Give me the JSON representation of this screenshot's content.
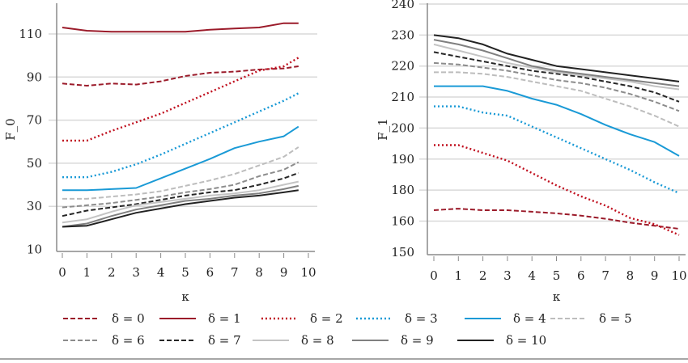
{
  "chart_data": [
    {
      "type": "line",
      "title": "",
      "xlabel": "κ",
      "ylabel": "F_0",
      "xlim": [
        0,
        10
      ],
      "ylim": [
        10,
        122
      ],
      "x_ticks": [
        "0",
        "1",
        "2",
        "3",
        "4",
        "5",
        "6",
        "7",
        "8",
        "9",
        "10"
      ],
      "y_ticks": [
        "10",
        "30",
        "50",
        "70",
        "90",
        "110"
      ],
      "y_tick_values": [
        10,
        30,
        50,
        70,
        90,
        110
      ],
      "grid": "horizontal",
      "x": [
        0,
        1,
        2,
        3,
        4,
        5,
        6,
        7,
        8,
        9,
        9.6
      ],
      "series": [
        {
          "name": "δ = 0",
          "style": "dashed",
          "color": "#9b1b2a",
          "values": [
            87,
            86,
            87,
            86.5,
            88,
            90.5,
            92,
            92.5,
            93.5,
            94,
            95
          ]
        },
        {
          "name": "δ = 1",
          "style": "solid",
          "color": "#9b1b2a",
          "values": [
            113,
            111.5,
            111,
            111,
            111,
            111,
            112,
            112.5,
            113,
            115,
            115
          ]
        },
        {
          "name": "δ = 2",
          "style": "dotted",
          "color": "#c0101f",
          "values": [
            60.5,
            60.5,
            65,
            69,
            73,
            78,
            83,
            88,
            93,
            95,
            99
          ]
        },
        {
          "name": "δ = 3",
          "style": "dotted",
          "color": "#1a9ad6",
          "values": [
            43.5,
            43.5,
            46,
            49.5,
            54,
            59,
            64,
            69,
            74,
            79,
            82.5
          ]
        },
        {
          "name": "δ = 4",
          "style": "solid",
          "color": "#1a9ad6",
          "values": [
            37.5,
            37.5,
            38,
            38.5,
            43,
            47.5,
            52,
            57,
            60,
            62.5,
            67
          ]
        },
        {
          "name": "δ = 5",
          "style": "dashed",
          "color": "#bdbdbd",
          "values": [
            33.5,
            33.5,
            34.5,
            35.5,
            37,
            39.5,
            42,
            45,
            49,
            53,
            57.5
          ]
        },
        {
          "name": "δ = 6",
          "style": "dashed",
          "color": "#8c8c8c",
          "values": [
            29.5,
            30.5,
            31.5,
            33,
            34.5,
            36.5,
            38,
            40,
            44,
            47,
            50.5
          ]
        },
        {
          "name": "δ = 7",
          "style": "dashed",
          "color": "#262626",
          "values": [
            25.5,
            28,
            29.5,
            31,
            33,
            35,
            36.5,
            37.5,
            40,
            43,
            45.5
          ]
        },
        {
          "name": "δ = 8",
          "style": "solid",
          "color": "#c4c4c4",
          "values": [
            22.5,
            24,
            27.5,
            30.5,
            32,
            33.5,
            35,
            36,
            37.5,
            40,
            41.5
          ]
        },
        {
          "name": "δ = 9",
          "style": "solid",
          "color": "#808080",
          "values": [
            20.5,
            22,
            25.5,
            28.5,
            30.5,
            32.5,
            33.5,
            35,
            36,
            38,
            39.5
          ]
        },
        {
          "name": "δ = 10",
          "style": "solid",
          "color": "#222222",
          "values": [
            20.5,
            21,
            24,
            27,
            29,
            31,
            32.5,
            34,
            35,
            36.5,
            37.5
          ]
        }
      ]
    },
    {
      "type": "line",
      "title": "",
      "xlabel": "κ",
      "ylabel": "F_1",
      "xlim": [
        0,
        10
      ],
      "ylim": [
        150,
        240
      ],
      "x_ticks": [
        "0",
        "1",
        "2",
        "3",
        "4",
        "5",
        "6",
        "7",
        "8",
        "9",
        "10"
      ],
      "y_ticks": [
        "150",
        "160",
        "180",
        "190",
        "200",
        "210",
        "220",
        "230",
        "240"
      ],
      "y_tick_values": [
        150,
        160,
        180,
        190,
        200,
        210,
        220,
        230,
        240
      ],
      "grid": "horizontal",
      "x": [
        0,
        1,
        2,
        3,
        4,
        5,
        6,
        7,
        8,
        9,
        10
      ],
      "series": [
        {
          "name": "δ = 0",
          "style": "dashed",
          "color": "#9b1b2a",
          "values": [
            167,
            168,
            167,
            167,
            166,
            165,
            163.5,
            161.5,
            159.5,
            158.5,
            157.5
          ]
        },
        {
          "name": "δ = 2",
          "style": "dotted",
          "color": "#c0101f",
          "values": [
            194.5,
            194.5,
            192,
            189.5,
            185.5,
            181.5,
            176,
            170,
            162,
            159,
            155.5
          ]
        },
        {
          "name": "δ = 3",
          "style": "dotted",
          "color": "#1a9ad6",
          "values": [
            207,
            207,
            205,
            204,
            200.5,
            197,
            193.5,
            190,
            186.5,
            182.5,
            178
          ]
        },
        {
          "name": "δ = 4",
          "style": "solid",
          "color": "#1a9ad6",
          "values": [
            213.5,
            213.5,
            213.5,
            212,
            209.5,
            207.5,
            204.5,
            201,
            198,
            195.5,
            191
          ]
        },
        {
          "name": "δ = 5",
          "style": "dashed",
          "color": "#bdbdbd",
          "values": [
            218,
            218,
            217.5,
            216.5,
            215,
            213.5,
            212,
            209.5,
            207,
            204,
            200.5
          ]
        },
        {
          "name": "δ = 6",
          "style": "dashed",
          "color": "#8c8c8c",
          "values": [
            221,
            220.5,
            219.5,
            218.5,
            217,
            215.5,
            214.5,
            213,
            211,
            208.5,
            205.5
          ]
        },
        {
          "name": "δ = 7",
          "style": "dashed",
          "color": "#262626",
          "values": [
            224.5,
            223,
            221.5,
            220,
            218.5,
            217.5,
            216.5,
            215,
            213.5,
            211.5,
            208.5
          ]
        },
        {
          "name": "δ = 8",
          "style": "solid",
          "color": "#c4c4c4",
          "values": [
            227,
            225,
            223,
            221,
            219.5,
            218,
            217,
            216,
            215,
            213.5,
            212.5
          ]
        },
        {
          "name": "δ = 9",
          "style": "solid",
          "color": "#808080",
          "values": [
            228.5,
            227,
            225,
            222.5,
            220,
            218.5,
            217.5,
            216.5,
            215.5,
            214.5,
            213.5
          ]
        },
        {
          "name": "δ = 10",
          "style": "solid",
          "color": "#222222",
          "values": [
            230,
            229,
            227,
            224,
            222,
            220,
            219,
            218,
            217,
            216,
            215
          ]
        }
      ]
    }
  ],
  "legend": {
    "placement": "bottom",
    "items": [
      {
        "label": "δ = 0",
        "style": "dashed",
        "color": "#9b1b2a"
      },
      {
        "label": "δ = 1",
        "style": "solid",
        "color": "#9b1b2a"
      },
      {
        "label": "δ = 2",
        "style": "dotted",
        "color": "#c0101f"
      },
      {
        "label": "δ = 3",
        "style": "dotted",
        "color": "#1a9ad6"
      },
      {
        "label": "δ = 4",
        "style": "solid",
        "color": "#1a9ad6"
      },
      {
        "label": "δ = 5",
        "style": "dashed",
        "color": "#bdbdbd"
      },
      {
        "label": "δ = 6",
        "style": "dashed",
        "color": "#8c8c8c"
      },
      {
        "label": "δ = 7",
        "style": "dashed",
        "color": "#262626"
      },
      {
        "label": "δ = 8",
        "style": "solid",
        "color": "#c4c4c4"
      },
      {
        "label": "δ = 9",
        "style": "solid",
        "color": "#808080"
      },
      {
        "label": "δ = 10",
        "style": "solid",
        "color": "#222222"
      }
    ]
  }
}
